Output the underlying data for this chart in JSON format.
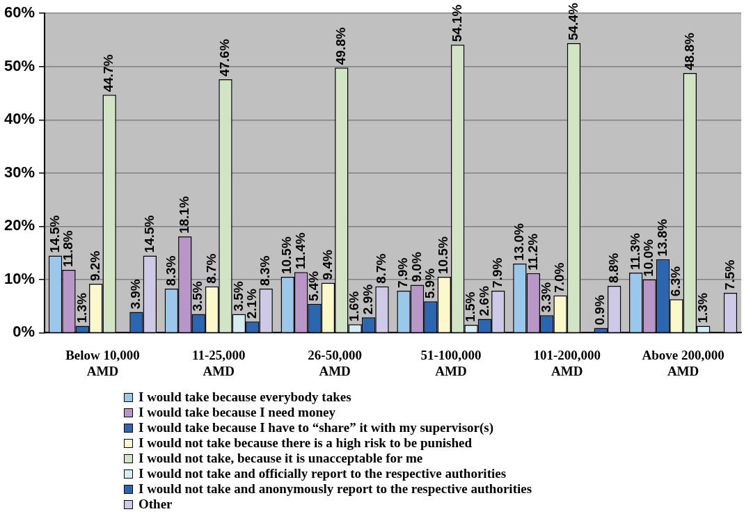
{
  "chart_data": {
    "type": "bar",
    "categories": [
      "Below 10,000 AMD",
      "11-25,000 AMD",
      "26-50,000 AMD",
      "51-100,000 AMD",
      "101-200,000 AMD",
      "Above 200,000 AMD"
    ],
    "ylim": [
      0,
      60
    ],
    "yticks": [
      {
        "value": 0,
        "label": "0%"
      },
      {
        "value": 10,
        "label": "10%"
      },
      {
        "value": 20,
        "label": "20%"
      },
      {
        "value": 30,
        "label": "30%"
      },
      {
        "value": 40,
        "label": "40%"
      },
      {
        "value": 50,
        "label": "50%"
      },
      {
        "value": 60,
        "label": "60%"
      }
    ],
    "grid": "y",
    "legend": "bottom",
    "series": [
      {
        "name": "I would take because everybody takes",
        "color": "#99c8ea",
        "values": [
          14.5,
          8.3,
          10.5,
          7.9,
          13.0,
          11.3
        ],
        "value_labels": [
          "14.5%",
          "8.3%",
          "10.5%",
          "7.9%",
          "13.0%",
          "11.3%"
        ]
      },
      {
        "name": "I would take because I need money",
        "color": "#b896c8",
        "values": [
          11.8,
          18.1,
          11.4,
          9.0,
          11.2,
          10.0
        ],
        "value_labels": [
          "11.8%",
          "18.1%",
          "11.4%",
          "9.0%",
          "11.2%",
          "10.0%"
        ]
      },
      {
        "name": "I would take because I have to “share” it with my supervisor(s)",
        "color": "#2a67b0",
        "values": [
          1.3,
          3.5,
          5.4,
          5.9,
          3.3,
          13.8
        ],
        "value_labels": [
          "1.3%",
          "3.5%",
          "5.4%",
          "5.9%",
          "3.3%",
          "13.8%"
        ]
      },
      {
        "name": "I would not take because there is a high risk to be punished",
        "color": "#fbf8cc",
        "values": [
          9.2,
          8.7,
          9.4,
          10.5,
          7.0,
          6.3
        ],
        "value_labels": [
          "9.2%",
          "8.7%",
          "9.4%",
          "10.5%",
          "7.0%",
          "6.3%"
        ]
      },
      {
        "name": "I would not take, because it is unacceptable for me",
        "color": "#d1e5c4",
        "values": [
          44.7,
          47.6,
          49.8,
          54.1,
          54.4,
          48.8
        ],
        "value_labels": [
          "44.7%",
          "47.6%",
          "49.8%",
          "54.1%",
          "54.4%",
          "48.8%"
        ]
      },
      {
        "name": "I would not take and officially report to the respective authorities",
        "color": "#d4ecf3",
        "values": [
          null,
          3.5,
          1.6,
          1.5,
          null,
          1.3
        ],
        "value_labels": [
          null,
          "3.5%",
          "1.6%",
          "1.5%",
          null,
          "1.3%"
        ]
      },
      {
        "name": "I would not take and anonymously report to the respective authorities",
        "color": "#2a67b0",
        "values": [
          3.9,
          2.1,
          2.9,
          2.6,
          0.9,
          null
        ],
        "value_labels": [
          "3.9%",
          "2.1%",
          "2.9%",
          "2.6%",
          "0.9%",
          null
        ]
      },
      {
        "name": "Other",
        "color": "#cdc9e6",
        "values": [
          14.5,
          8.3,
          8.7,
          7.9,
          8.8,
          7.5
        ],
        "value_labels": [
          "14.5%",
          "8.3%",
          "8.7%",
          "7.9%",
          "8.8%",
          "7.5%"
        ]
      }
    ]
  }
}
